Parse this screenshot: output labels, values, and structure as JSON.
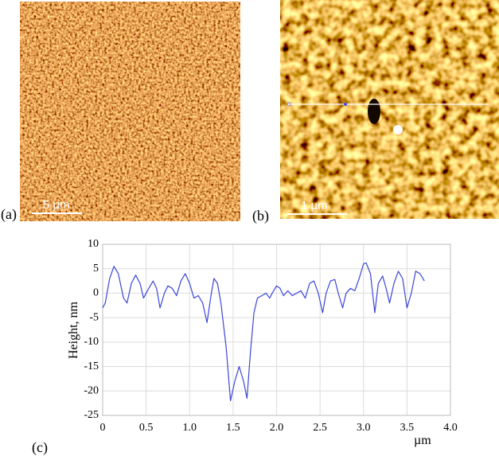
{
  "panels": [
    {
      "label": "(a)",
      "scale_bar": "5 µm"
    },
    {
      "label": "(b)",
      "scale_bar": "1 µm"
    },
    {
      "label": "(c)"
    }
  ],
  "chart_data": {
    "type": "line",
    "ylabel": "Height, nm",
    "xlabel": "µm",
    "x": [
      0,
      0.03,
      0.08,
      0.13,
      0.18,
      0.24,
      0.28,
      0.33,
      0.38,
      0.43,
      0.47,
      0.53,
      0.58,
      0.62,
      0.66,
      0.71,
      0.75,
      0.8,
      0.85,
      0.9,
      0.95,
      1.0,
      1.05,
      1.1,
      1.15,
      1.2,
      1.25,
      1.28,
      1.32,
      1.36,
      1.42,
      1.47,
      1.52,
      1.57,
      1.62,
      1.66,
      1.7,
      1.74,
      1.78,
      1.83,
      1.88,
      1.92,
      1.95,
      2.0,
      2.04,
      2.08,
      2.13,
      2.18,
      2.23,
      2.28,
      2.33,
      2.38,
      2.43,
      2.48,
      2.53,
      2.57,
      2.62,
      2.67,
      2.71,
      2.76,
      2.8,
      2.85,
      2.9,
      2.95,
      3.0,
      3.03,
      3.08,
      3.13,
      3.17,
      3.22,
      3.26,
      3.3,
      3.35,
      3.4,
      3.45,
      3.5,
      3.55,
      3.6,
      3.65,
      3.7
    ],
    "series": [
      {
        "color": "#3b46d6",
        "values": [
          -3,
          -2,
          3,
          5.5,
          4,
          -1,
          -2,
          2,
          3.7,
          2,
          -1,
          1,
          2.5,
          1,
          -3,
          0,
          1.5,
          1,
          -0.5,
          2.5,
          4,
          2,
          -1,
          -0.5,
          -2,
          -6,
          0,
          3,
          2,
          -2,
          -11,
          -22,
          -18,
          -15,
          -18,
          -21.5,
          -12,
          -4,
          -1,
          -0.5,
          0,
          -1,
          0,
          1.5,
          1,
          -0.5,
          0.5,
          -0.5,
          0,
          0.5,
          -1,
          2,
          2.5,
          0,
          -4,
          0,
          2.5,
          2.8,
          0,
          -3,
          0,
          1,
          0.5,
          3,
          6,
          6.2,
          4,
          -4,
          2,
          3.5,
          1,
          -2,
          2,
          4.5,
          3,
          -3,
          0,
          4.5,
          4,
          2.5
        ]
      }
    ],
    "xlim": [
      0,
      4.0
    ],
    "ylim": [
      -25,
      10
    ],
    "xticks": [
      0,
      0.5,
      {
        "value": 1,
        "label": "1.0"
      },
      1.5,
      {
        "value": 2,
        "label": "2.0"
      },
      2.5,
      {
        "value": 3,
        "label": "3.0"
      },
      3.5,
      {
        "value": 4,
        "label": "4.0"
      }
    ],
    "yticks": [
      -25,
      -20,
      -15,
      -10,
      -5,
      0,
      5,
      10
    ],
    "grid": true
  }
}
